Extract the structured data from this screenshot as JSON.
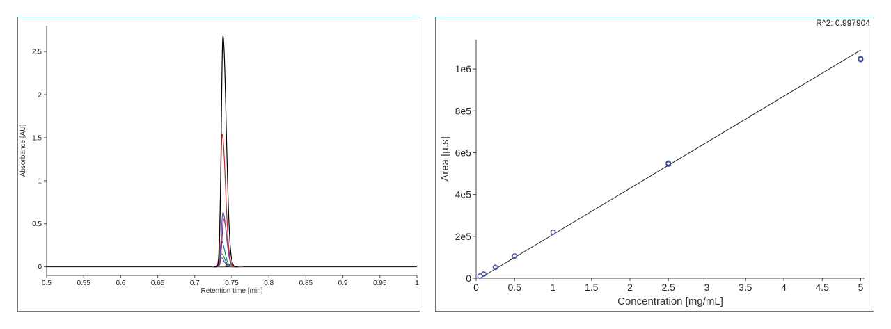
{
  "chart_data": [
    {
      "type": "line",
      "title": "",
      "xlabel": "Retention time [min]",
      "ylabel": "Absorbance [AU]",
      "xlim": [
        0.5,
        1.0
      ],
      "ylim": [
        -0.1,
        2.8
      ],
      "x_ticks": [
        "0.5",
        "0.55",
        "0.6",
        "0.65",
        "0.7",
        "0.75",
        "0.8",
        "0.85",
        "0.9",
        "0.95",
        "1"
      ],
      "y_ticks": [
        "0",
        "0.5",
        "1",
        "1.5",
        "2",
        "2.5"
      ],
      "grid": false,
      "series": [
        {
          "color": "#000000",
          "peak_time": 0.738,
          "peak_height": 2.68
        },
        {
          "color": "#c0302a",
          "peak_time": 0.737,
          "peak_height": 1.54
        },
        {
          "color": "#6a50b8",
          "peak_time": 0.738,
          "peak_height": 0.63
        },
        {
          "color": "#8a2a48",
          "peak_time": 0.739,
          "peak_height": 0.55
        },
        {
          "color": "#2a7a80",
          "peak_time": 0.736,
          "peak_height": 0.3
        },
        {
          "color": "#2a8a3a",
          "peak_time": 0.736,
          "peak_height": 0.15
        },
        {
          "color": "#4058c8",
          "peak_time": 0.735,
          "peak_height": 0.11
        },
        {
          "color": "#c04040",
          "peak_time": 0.745,
          "peak_height": 0.03
        }
      ]
    },
    {
      "type": "scatter",
      "title": "",
      "xlabel": "Concentration [mg/mL]",
      "ylabel": "Area [µ.s]",
      "xlim": [
        0,
        5.05
      ],
      "ylim": [
        0,
        1140000
      ],
      "x_ticks": [
        "0",
        "0.5",
        "1",
        "1.5",
        "2",
        "2.5",
        "3",
        "3.5",
        "4",
        "4.5",
        "5"
      ],
      "y_ticks": [
        "0",
        "2e5",
        "4e5",
        "6e5",
        "8e5",
        "1e6"
      ],
      "grid": false,
      "annotation": "R^2: 0.997904",
      "points": [
        {
          "x": 0.05,
          "y": 10000
        },
        {
          "x": 0.1,
          "y": 20000
        },
        {
          "x": 0.25,
          "y": 52000
        },
        {
          "x": 0.5,
          "y": 106000
        },
        {
          "x": 1,
          "y": 220000
        },
        {
          "x": 2.5,
          "y": 545000
        },
        {
          "x": 2.5,
          "y": 550000
        },
        {
          "x": 5,
          "y": 1045000
        },
        {
          "x": 5,
          "y": 1050000
        }
      ],
      "fit_line": {
        "x": [
          0.05,
          5
        ],
        "y": [
          0,
          1090000
        ]
      },
      "marker_color": "#3a4a9a"
    }
  ]
}
